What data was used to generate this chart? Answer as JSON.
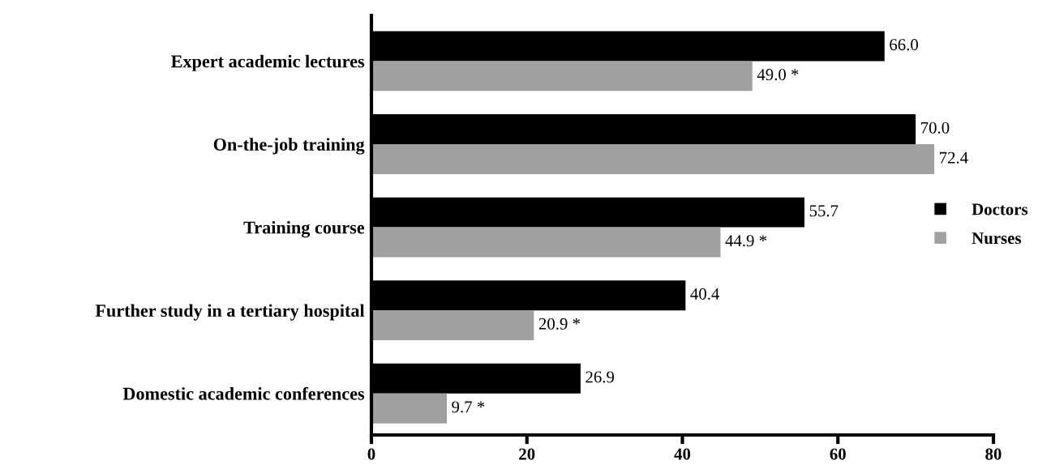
{
  "chart_data": {
    "type": "bar",
    "orientation": "horizontal",
    "categories": [
      "Expert academic lectures",
      "On-the-job training",
      "Training course",
      "Further study in a tertiary hospital",
      "Domestic academic conferences"
    ],
    "series": [
      {
        "name": "Doctors",
        "color": "#000000",
        "values": [
          66.0,
          70.0,
          55.7,
          40.4,
          26.9
        ],
        "value_labels": [
          "66.0",
          "70.0",
          "55.7",
          "40.4",
          "26.9"
        ]
      },
      {
        "name": "Nurses",
        "color": "#a0a0a0",
        "values": [
          49.0,
          72.4,
          44.9,
          20.9,
          9.7
        ],
        "value_labels": [
          "49.0 *",
          "72.4",
          "44.9 *",
          "20.9 *",
          "9.7 *"
        ]
      }
    ],
    "xlim": [
      0,
      80
    ],
    "xticks": [
      0,
      20,
      40,
      60,
      80
    ],
    "grid": false,
    "legend": "right"
  }
}
